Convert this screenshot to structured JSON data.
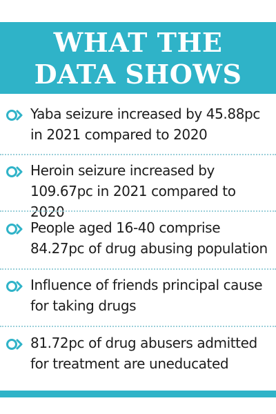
{
  "header": {
    "line1": "WHAT THE",
    "line2": "DATA SHOWS"
  },
  "items": [
    {
      "text": "Yaba seizure increased by 45.88pc\nin 2021 compared to 2020"
    },
    {
      "text": "Heroin seizure increased by\n109.67pc in 2021 compared to 2020"
    },
    {
      "text": "People aged 16-40 comprise\n84.27pc of drug abusing population"
    },
    {
      "text": "Influence of friends principal cause\nfor taking drugs"
    },
    {
      "text": "81.72pc of drug abusers admitted\nfor treatment are uneducated"
    }
  ],
  "icons": {
    "bullet": "double-chevron-circle-icon"
  },
  "colors": {
    "accent": "#2fb3c8",
    "text": "#1c1c1c",
    "background": "#ffffff"
  }
}
